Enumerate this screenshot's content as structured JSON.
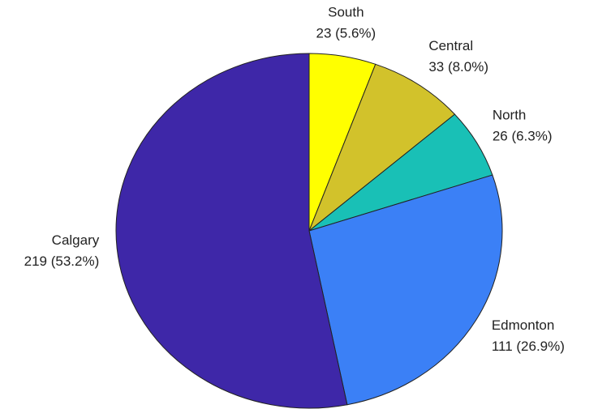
{
  "chart_data": {
    "type": "pie",
    "categories": [
      "South",
      "Central",
      "North",
      "Edmonton",
      "Calgary"
    ],
    "values": [
      23,
      33,
      26,
      111,
      219
    ],
    "value_labels": [
      "23 (5.6%)",
      "33 (8.0%)",
      "26 (6.3%)",
      "111 (26.9%)",
      "219 (53.2%)"
    ],
    "colors": [
      "#ffff00",
      "#d2c22b",
      "#19c0b6",
      "#3b80f6",
      "#3e27a8"
    ]
  }
}
